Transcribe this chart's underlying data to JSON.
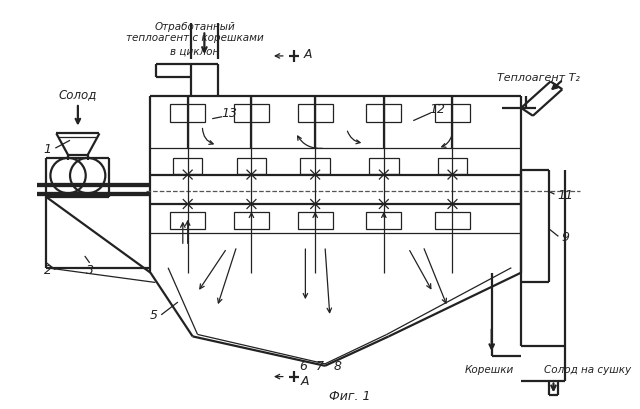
{
  "bg_color": "#ffffff",
  "line_color": "#222222",
  "lw_main": 1.6,
  "lw_thin": 0.9,
  "fig_label": "Фиг. 1",
  "solod_label": "Солод",
  "otrab_line1": "Отработанный",
  "otrab_line2": "теплоагент с корешками",
  "otrab_line3": "в циклон",
  "teploa_label": "Теплоагент Т₂",
  "koreshki_label": "Корешки",
  "solod_sushku_label": "Солод на сушку",
  "A_label": "А",
  "nums": [
    "1",
    "2",
    "3",
    "5",
    "6",
    "7",
    "8",
    "9",
    "11",
    "12",
    "13"
  ]
}
